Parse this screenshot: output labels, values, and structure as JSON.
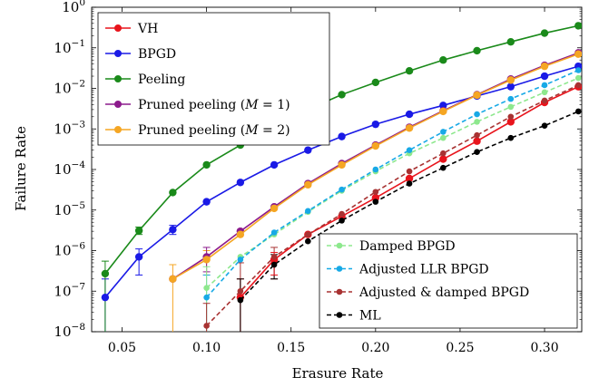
{
  "chart_data": {
    "type": "line",
    "title": "",
    "xlabel": "Erasure Rate",
    "ylabel": "Failure Rate",
    "xlim": [
      0.032,
      0.322
    ],
    "ylim_log10": [
      -8,
      0
    ],
    "y_scale": "log",
    "grid": false,
    "x_ticks": [
      0.05,
      0.1,
      0.15,
      0.2,
      0.25,
      0.3
    ],
    "x_tick_labels": [
      "0.05",
      "0.10",
      "0.15",
      "0.20",
      "0.25",
      "0.30"
    ],
    "y_ticks": [
      -8,
      -7,
      -6,
      -5,
      -4,
      -3,
      -2,
      -1,
      0
    ],
    "y_tick_labels": [
      {
        "base": "10",
        "exp": "−8"
      },
      {
        "base": "10",
        "exp": "−7"
      },
      {
        "base": "10",
        "exp": "−6"
      },
      {
        "base": "10",
        "exp": "−5"
      },
      {
        "base": "10",
        "exp": "−4"
      },
      {
        "base": "10",
        "exp": "−3"
      },
      {
        "base": "10",
        "exp": "−2"
      },
      {
        "base": "10",
        "exp": "−1"
      },
      {
        "base": "10",
        "exp": "0"
      }
    ],
    "legend_top_left": {
      "placement": "top-left",
      "entries": [
        {
          "series": 0,
          "label": "VH"
        },
        {
          "series": 1,
          "label": "BPGD"
        },
        {
          "series": 2,
          "label": "Peeling"
        },
        {
          "series": 3,
          "label": "Pruned peeling (",
          "math": "M",
          "tail": " = 1)"
        },
        {
          "series": 4,
          "label": "Pruned peeling (",
          "math": "M",
          "tail": " = 2)"
        }
      ]
    },
    "legend_bottom_right": {
      "placement": "bottom-right",
      "entries": [
        {
          "series": 5,
          "label": "Damped BPGD"
        },
        {
          "series": 6,
          "label": "Adjusted LLR BPGD"
        },
        {
          "series": 7,
          "label": "Adjusted & damped BPGD"
        },
        {
          "series": 8,
          "label": "ML"
        }
      ]
    },
    "series": [
      {
        "name": "VH",
        "color": "#e8141c",
        "dashed": false,
        "x": [
          0.12,
          0.14,
          0.16,
          0.18,
          0.2,
          0.22,
          0.24,
          0.26,
          0.28,
          0.3,
          0.32
        ],
        "y": [
          7e-08,
          6e-07,
          2.5e-06,
          7e-06,
          2e-05,
          6e-05,
          0.00018,
          0.0005,
          0.0015,
          0.0045,
          0.011
        ]
      },
      {
        "name": "BPGD",
        "color": "#1a1ae6",
        "dashed": false,
        "x": [
          0.04,
          0.06,
          0.08,
          0.1,
          0.12,
          0.14,
          0.16,
          0.18,
          0.2,
          0.22,
          0.24,
          0.26,
          0.28,
          0.3,
          0.32
        ],
        "y": [
          7e-08,
          7e-07,
          3.3e-06,
          1.6e-05,
          4.8e-05,
          0.00013,
          0.0003,
          0.00065,
          0.0013,
          0.0023,
          0.0038,
          0.0065,
          0.011,
          0.02,
          0.035
        ]
      },
      {
        "name": "Peeling",
        "color": "#1a8a1a",
        "dashed": false,
        "x": [
          0.04,
          0.06,
          0.08,
          0.1,
          0.12,
          0.14,
          0.16,
          0.18,
          0.2,
          0.22,
          0.24,
          0.26,
          0.28,
          0.3,
          0.32
        ],
        "y": [
          2.7e-07,
          3.1e-06,
          2.7e-05,
          0.00013,
          0.0004,
          0.001,
          0.003,
          0.007,
          0.014,
          0.027,
          0.05,
          0.085,
          0.14,
          0.23,
          0.35
        ]
      },
      {
        "name": "Pruned peeling (M=1)",
        "color": "#8c1a8c",
        "dashed": false,
        "x": [
          0.08,
          0.1,
          0.12,
          0.14,
          0.16,
          0.18,
          0.2,
          0.22,
          0.24,
          0.26,
          0.28,
          0.3,
          0.32
        ],
        "y": [
          2e-07,
          7e-07,
          3e-06,
          1.2e-05,
          4.5e-05,
          0.00014,
          0.0004,
          0.0011,
          0.0028,
          0.007,
          0.017,
          0.037,
          0.075
        ]
      },
      {
        "name": "Pruned peeling (M=2)",
        "color": "#f5a623",
        "dashed": false,
        "x": [
          0.08,
          0.1,
          0.12,
          0.14,
          0.16,
          0.18,
          0.2,
          0.22,
          0.24,
          0.26,
          0.28,
          0.3,
          0.32
        ],
        "y": [
          2e-07,
          6e-07,
          2.5e-06,
          1.1e-05,
          4.2e-05,
          0.00013,
          0.00038,
          0.00105,
          0.0027,
          0.0068,
          0.016,
          0.035,
          0.07
        ]
      },
      {
        "name": "Damped BPGD",
        "color": "#8de88d",
        "dashed": true,
        "x": [
          0.1,
          0.12,
          0.14,
          0.16,
          0.18,
          0.2,
          0.22,
          0.24,
          0.26,
          0.28,
          0.3,
          0.32
        ],
        "y": [
          1.2e-07,
          7e-07,
          2.5e-06,
          9e-06,
          3e-05,
          9e-05,
          0.00025,
          0.0006,
          0.0015,
          0.0035,
          0.008,
          0.018
        ]
      },
      {
        "name": "Adjusted LLR BPGD",
        "color": "#17a9e6",
        "dashed": true,
        "x": [
          0.1,
          0.12,
          0.14,
          0.16,
          0.18,
          0.2,
          0.22,
          0.24,
          0.26,
          0.28,
          0.3,
          0.32
        ],
        "y": [
          7e-08,
          6e-07,
          2.8e-06,
          9.5e-06,
          3.2e-05,
          0.0001,
          0.0003,
          0.00085,
          0.0023,
          0.0055,
          0.012,
          0.028
        ]
      },
      {
        "name": "Adjusted & damped BPGD",
        "color": "#a83232",
        "dashed": true,
        "x": [
          0.1,
          0.12,
          0.14,
          0.16,
          0.18,
          0.2,
          0.22,
          0.24,
          0.26,
          0.28,
          0.3,
          0.32
        ],
        "y": [
          1.4e-08,
          1e-07,
          7e-07,
          2.5e-06,
          8e-06,
          2.8e-05,
          9e-05,
          0.00025,
          0.0007,
          0.002,
          0.005,
          0.012
        ]
      },
      {
        "name": "ML",
        "color": "#000000",
        "dashed": true,
        "x": [
          0.12,
          0.14,
          0.16,
          0.18,
          0.2,
          0.22,
          0.24,
          0.26,
          0.28,
          0.3,
          0.32
        ],
        "y": [
          6e-08,
          4.5e-07,
          1.7e-06,
          5.5e-06,
          1.6e-05,
          4.5e-05,
          0.00011,
          0.00027,
          0.0006,
          0.0012,
          0.0027
        ]
      }
    ],
    "error_bars": [
      {
        "series": 1,
        "x": 0.04,
        "lo": 1e-08,
        "hi": 2e-07
      },
      {
        "series": 1,
        "x": 0.06,
        "lo": 2.5e-07,
        "hi": 1.1e-06
      },
      {
        "series": 1,
        "x": 0.08,
        "lo": 2.5e-06,
        "hi": 4.2e-06
      },
      {
        "series": 2,
        "x": 0.04,
        "lo": 1e-08,
        "hi": 5.5e-07
      },
      {
        "series": 2,
        "x": 0.06,
        "lo": 2.5e-06,
        "hi": 3.8e-06
      },
      {
        "series": 4,
        "x": 0.08,
        "lo": 1e-08,
        "hi": 4.5e-07
      },
      {
        "series": 4,
        "x": 0.1,
        "lo": 2.5e-07,
        "hi": 1e-06
      },
      {
        "series": 3,
        "x": 0.1,
        "lo": 3e-07,
        "hi": 1.2e-06
      },
      {
        "series": 6,
        "x": 0.1,
        "lo": 1e-08,
        "hi": 2.5e-07
      },
      {
        "series": 5,
        "x": 0.1,
        "lo": 1e-08,
        "hi": 4e-07
      },
      {
        "series": 7,
        "x": 0.1,
        "lo": 1e-08,
        "hi": 5e-08
      },
      {
        "series": 7,
        "x": 0.12,
        "lo": 1e-08,
        "hi": 5e-07
      },
      {
        "series": 0,
        "x": 0.12,
        "lo": 1e-08,
        "hi": 2e-07
      },
      {
        "series": 8,
        "x": 0.12,
        "lo": 1e-08,
        "hi": 2e-07
      },
      {
        "series": 7,
        "x": 0.14,
        "lo": 2e-07,
        "hi": 1.2e-06
      },
      {
        "series": 8,
        "x": 0.14,
        "lo": 2e-07,
        "hi": 8e-07
      },
      {
        "series": 0,
        "x": 0.14,
        "lo": 2.5e-07,
        "hi": 9e-07
      }
    ]
  }
}
